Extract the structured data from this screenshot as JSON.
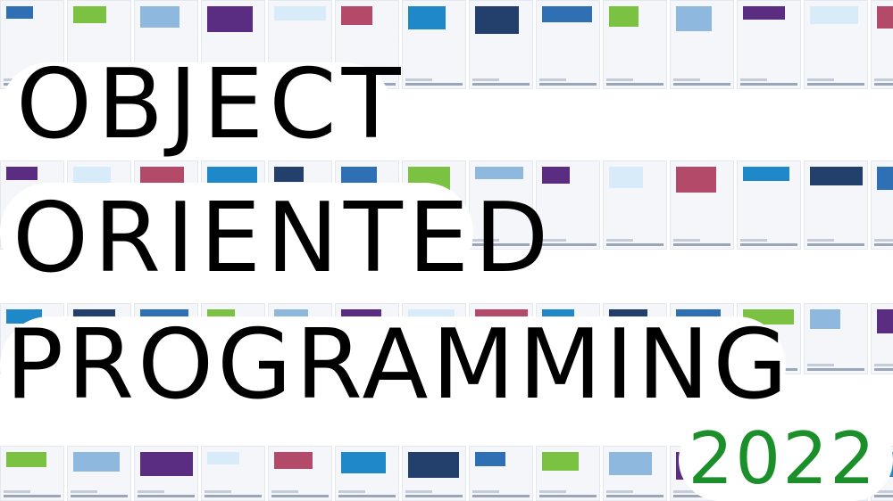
{
  "title": {
    "line1": "OBJECT",
    "line2": "ORIENTED",
    "line3": "PROGRAMMING"
  },
  "year": "2022",
  "colors": {
    "title": "#000000",
    "year": "#1a8f2a",
    "background": "#ffffff"
  }
}
